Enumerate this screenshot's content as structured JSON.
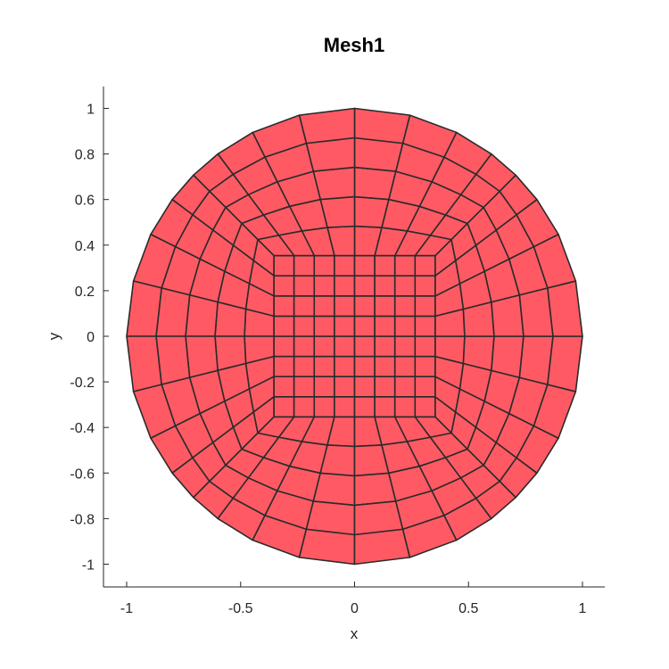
{
  "chart_data": {
    "type": "mesh",
    "title": "Mesh1",
    "xlabel": "x",
    "ylabel": "y",
    "xlim": [
      -1.1,
      1.1
    ],
    "ylim": [
      -1.1,
      1.1
    ],
    "xticks": [
      -1,
      -0.5,
      0,
      0.5,
      1
    ],
    "xtick_labels": [
      "-1",
      "-0.5",
      "0",
      "0.5",
      "1"
    ],
    "yticks": [
      1,
      0.8,
      0.6,
      0.4,
      0.2,
      0,
      -0.2,
      -0.4,
      -0.6,
      -0.8,
      -1
    ],
    "ytick_labels": [
      "1",
      "0.8",
      "0.6",
      "0.4",
      "0.2",
      "0",
      "-0.2",
      "-0.4",
      "-0.6",
      "-0.8",
      "-1"
    ],
    "domain": {
      "shape": "disk",
      "radius": 1.0,
      "center": [
        0,
        0
      ]
    },
    "inner_square": {
      "half_width": 0.354,
      "divisions_per_side": 8
    },
    "ring_layers": 5,
    "grid": false,
    "face_color": "#ff5a64",
    "edge_color": "#2b2b2b"
  }
}
